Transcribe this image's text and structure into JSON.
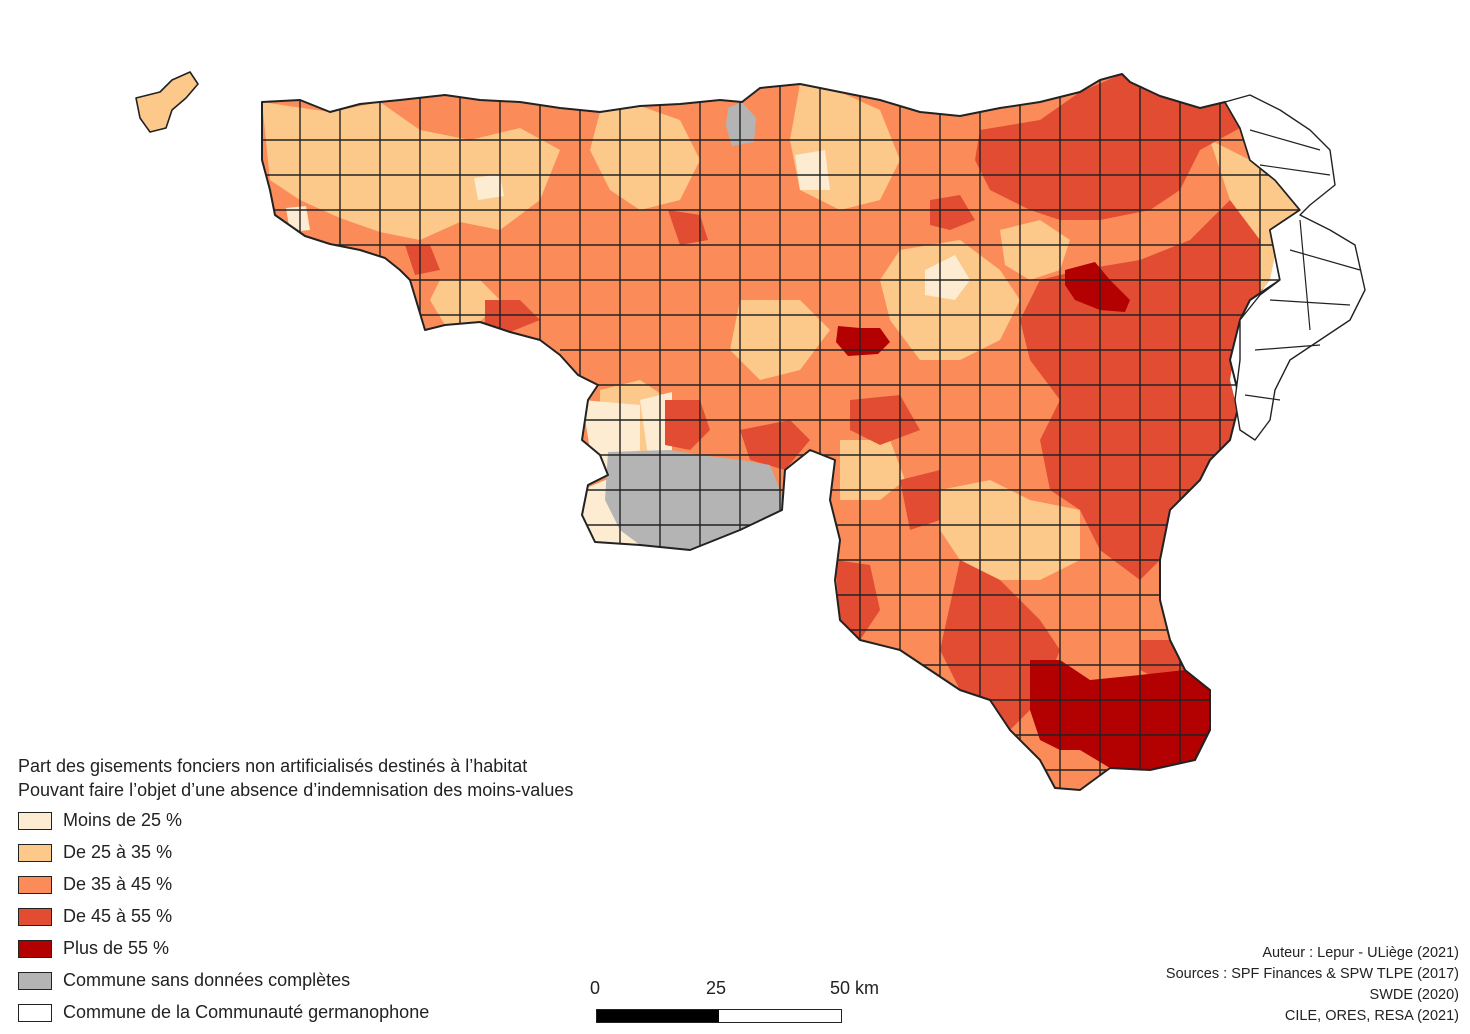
{
  "legend": {
    "title_line1": "Part des gisements fonciers non artificialisés destinés à l’habitat",
    "title_line2": "Pouvant faire l’objet d’une absence d’indemnisation des moins-values",
    "items": [
      {
        "label": "Moins de 25 %",
        "color": "#fdebd2"
      },
      {
        "label": "De 25 à 35 %",
        "color": "#fdc98b"
      },
      {
        "label": "De 35 à 45 %",
        "color": "#fb8c59"
      },
      {
        "label": "De 45 à 55 %",
        "color": "#e14c33"
      },
      {
        "label": "Plus de 55 %",
        "color": "#b30000"
      },
      {
        "label": "Commune sans données complètes",
        "color": "#b4b4b4"
      },
      {
        "label": "Commune de la Communauté germanophone",
        "color": "#ffffff"
      }
    ]
  },
  "scale_bar": {
    "ticks": [
      "0",
      "25",
      "50 km"
    ],
    "segment_colors": [
      "#000000",
      "#ffffff"
    ]
  },
  "credits": {
    "author": "Auteur : Lepur - ULiège (2021)",
    "sources_line1": "Sources : SPF Finances & SPW TLPE (2017)",
    "sources_line2": "SWDE (2020)",
    "sources_line3": "CILE, ORES, RESA (2021)"
  },
  "colors": {
    "boundary": "#222222",
    "background": "#ffffff"
  }
}
